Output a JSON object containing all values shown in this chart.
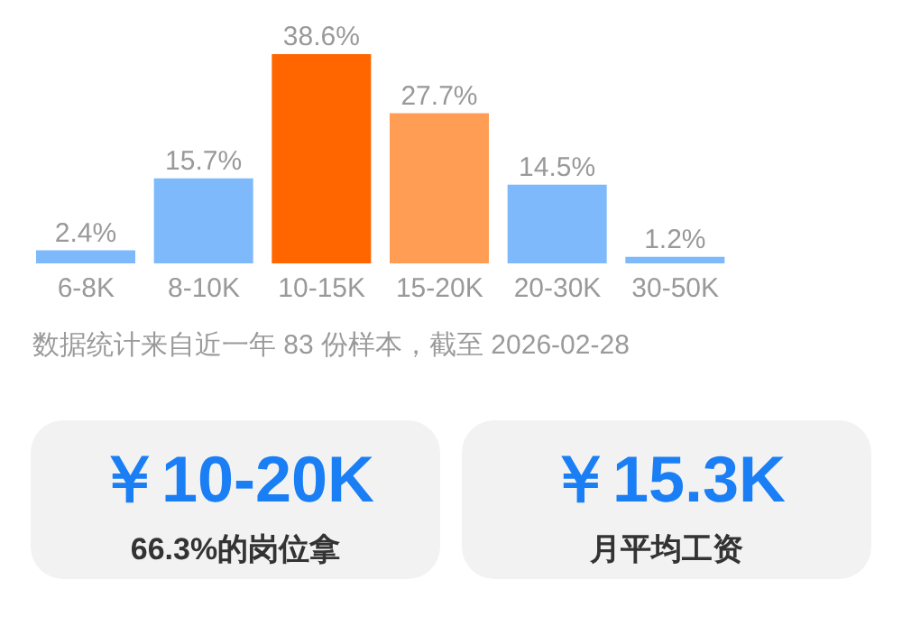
{
  "chart_data": [
    {
      "type": "bar",
      "categories": [
        "6-8K",
        "8-10K",
        "10-15K",
        "15-20K",
        "20-30K",
        "30-50K"
      ],
      "values": [
        2.4,
        15.7,
        38.6,
        27.7,
        14.5,
        1.2
      ],
      "value_labels": [
        "2.4%",
        "15.7%",
        "38.6%",
        "27.7%",
        "14.5%",
        "1.2%"
      ],
      "colors": [
        "#7db9fb",
        "#7db9fb",
        "#ff6600",
        "#ff9d55",
        "#7db9fb",
        "#7db9fb"
      ],
      "annotations": [
        "数据统计来自近一年 83 份样本，截至 2026-02-28"
      ]
    },
    {
      "type": "other",
      "annotations": [
        "￥10-20K",
        "66.3%的岗位拿",
        "￥15.3K",
        "月平均工资"
      ]
    }
  ]
}
